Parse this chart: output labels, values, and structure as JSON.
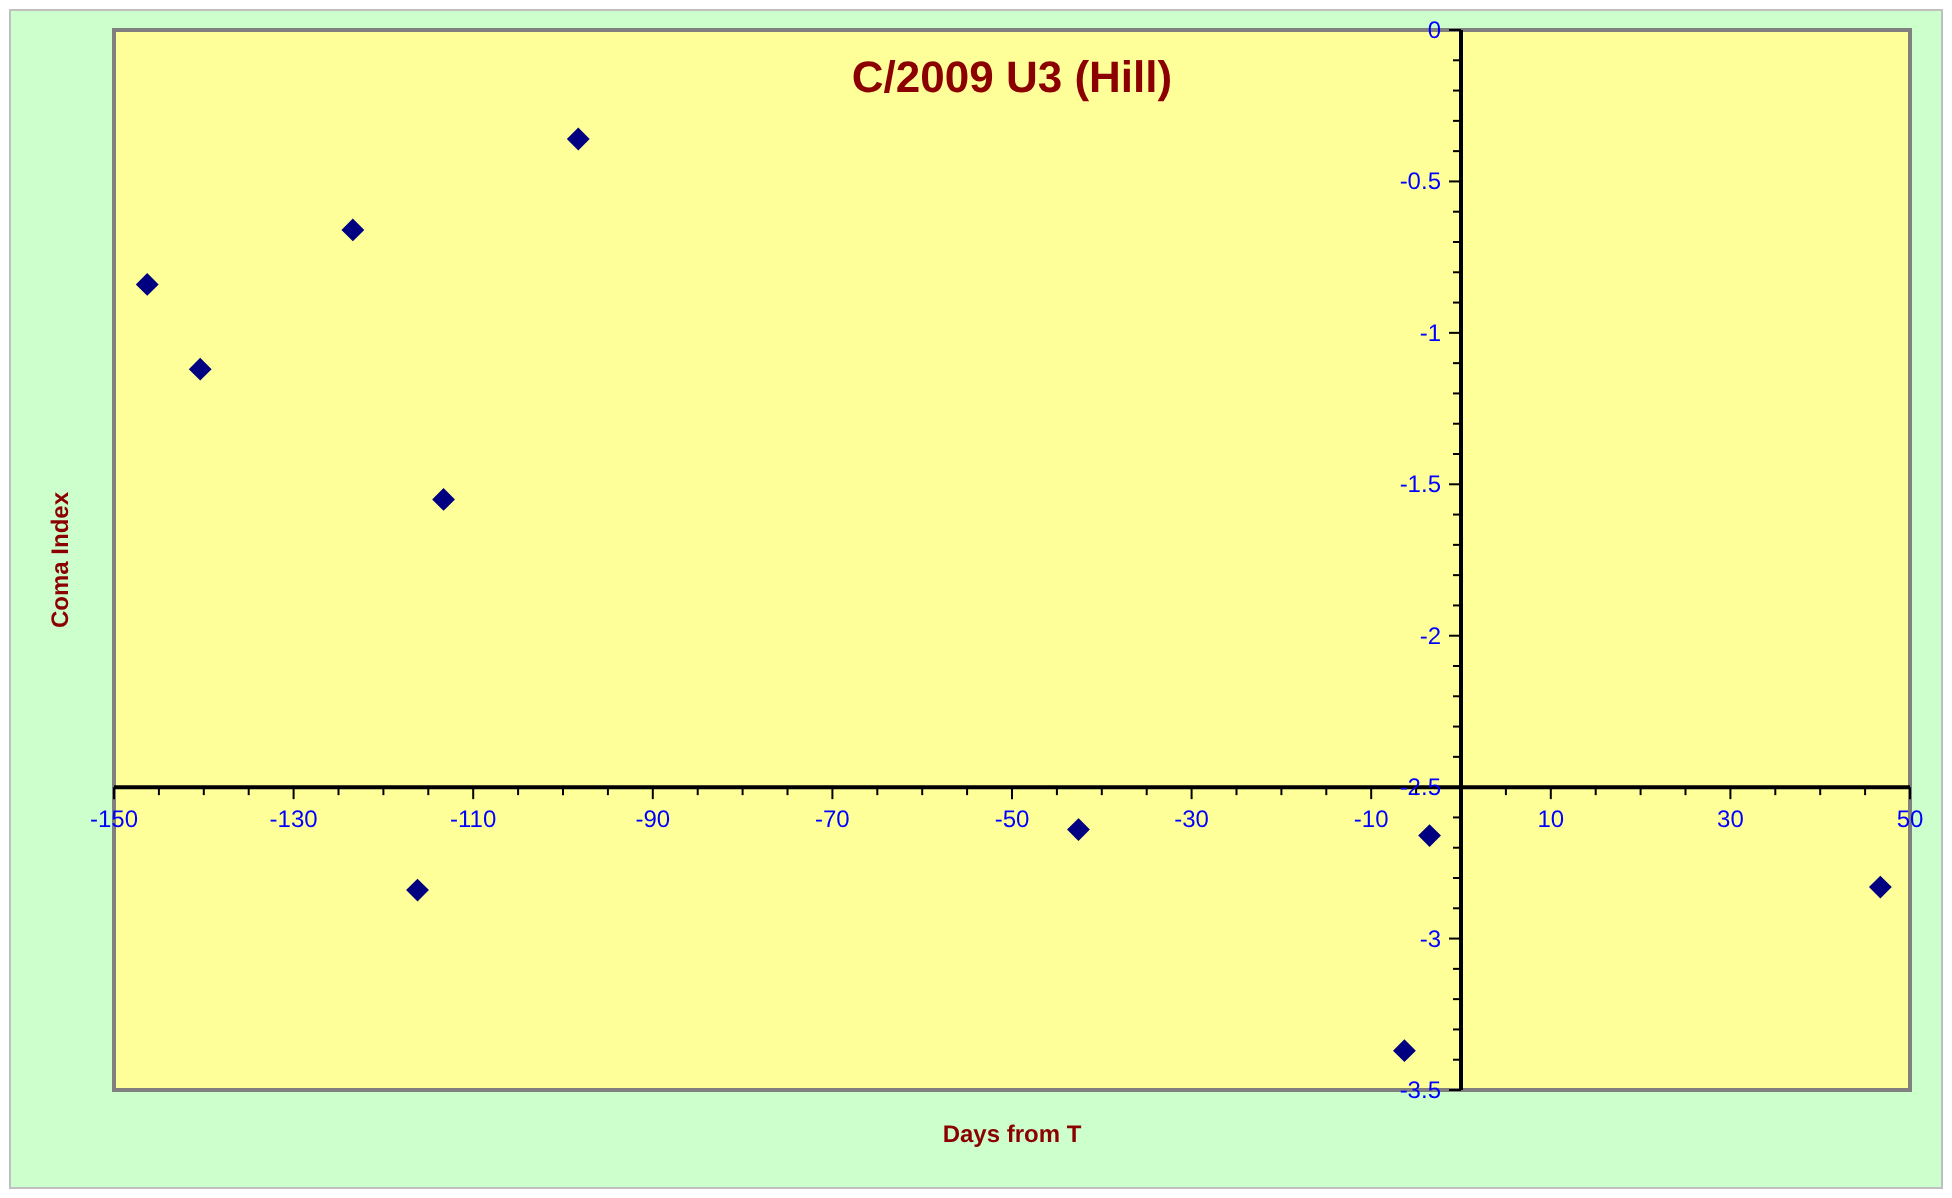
{
  "chart_data": {
    "type": "scatter",
    "title": "C/2009 U3 (Hill)",
    "xlabel": "Days from T",
    "ylabel": "Coma Index",
    "x": [
      -146.3,
      -140.4,
      -123.4,
      -113.3,
      -98.3,
      -116.2,
      -42.6,
      -3.5,
      -6.3,
      46.7
    ],
    "series": [
      {
        "color": "#000080",
        "values": [
          -0.84,
          -1.12,
          -0.66,
          -1.55,
          -0.36,
          -2.84,
          -2.64,
          -2.66,
          -3.37,
          -2.83
        ]
      }
    ],
    "marker": "diamond",
    "xlim": [
      -150,
      50
    ],
    "xticks": [
      -150,
      -130,
      -110,
      -90,
      -70,
      -50,
      -30,
      -10,
      10,
      30,
      50
    ],
    "ylim": [
      -3.5,
      0
    ],
    "yticks": [
      -3.5,
      -3,
      -2.5,
      -2,
      -1.5,
      -1,
      -0.5,
      0
    ]
  }
}
